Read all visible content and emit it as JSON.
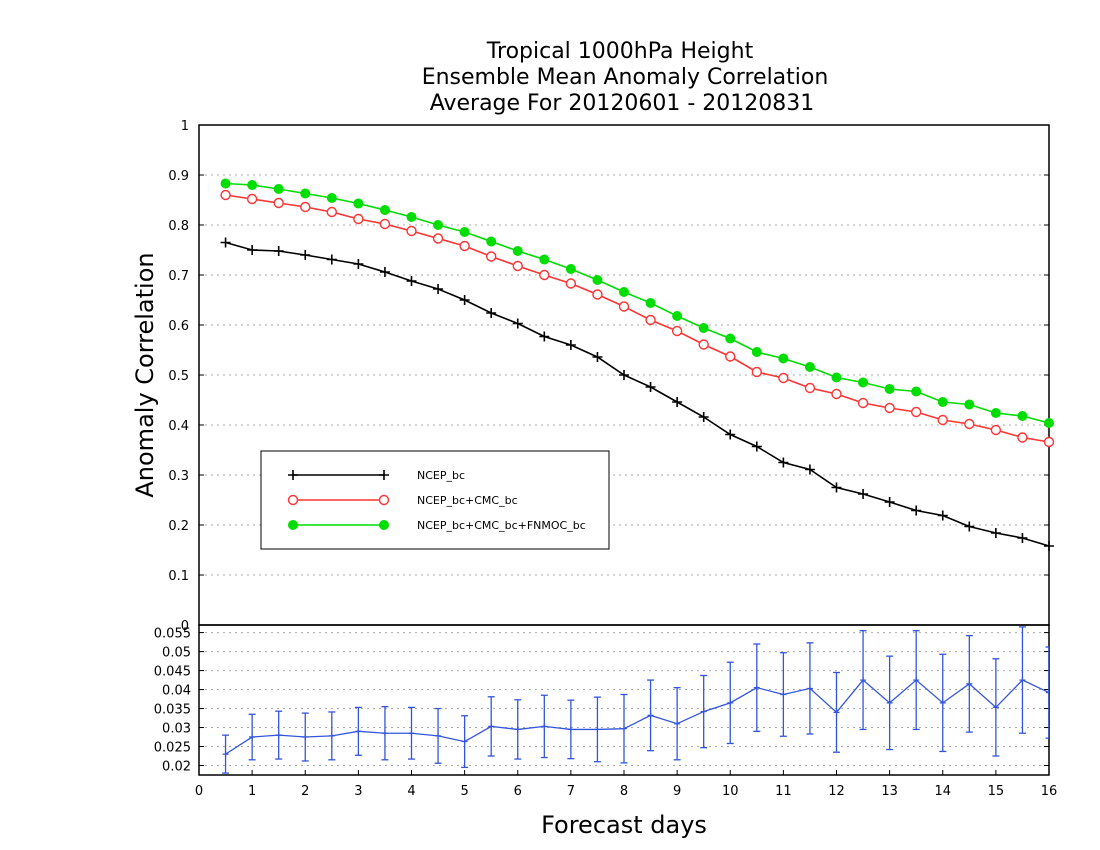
{
  "chart_data": [
    {
      "type": "line",
      "title_lines": [
        "Tropical 1000hPa Height",
        "Ensemble Mean Anomaly Correlation",
        "Average For 20120601 - 20120831"
      ],
      "ylabel": "Anomaly Correlation",
      "xlim": [
        0,
        16
      ],
      "ylim": [
        0,
        1
      ],
      "yticks": [
        "0",
        "0.1",
        "0.2",
        "0.3",
        "0.4",
        "0.5",
        "0.6",
        "0.7",
        "0.8",
        "0.9",
        "1"
      ],
      "grid": true,
      "legend_position": "lower-left",
      "x": [
        0.5,
        1.0,
        1.5,
        2.0,
        2.5,
        3.0,
        3.5,
        4.0,
        4.5,
        5.0,
        5.5,
        6.0,
        6.5,
        7.0,
        7.5,
        8.0,
        8.5,
        9.0,
        9.5,
        10.0,
        10.5,
        11.0,
        11.5,
        12.0,
        12.5,
        13.0,
        13.5,
        14.0,
        14.5,
        15.0,
        15.5,
        16.0
      ],
      "series": [
        {
          "name": "NCEP_bc",
          "color": "#000000",
          "marker": "plus",
          "values": [
            0.765,
            0.75,
            0.748,
            0.74,
            0.731,
            0.722,
            0.706,
            0.688,
            0.672,
            0.65,
            0.624,
            0.603,
            0.577,
            0.56,
            0.536,
            0.5,
            0.476,
            0.446,
            0.416,
            0.381,
            0.357,
            0.325,
            0.311,
            0.275,
            0.262,
            0.246,
            0.229,
            0.219,
            0.197,
            0.184,
            0.174,
            0.158
          ]
        },
        {
          "name": "NCEP_bc+CMC_bc",
          "color": "#ff3333",
          "marker": "open-circle",
          "values": [
            0.86,
            0.852,
            0.844,
            0.836,
            0.826,
            0.812,
            0.802,
            0.788,
            0.773,
            0.758,
            0.737,
            0.718,
            0.7,
            0.683,
            0.661,
            0.637,
            0.61,
            0.588,
            0.561,
            0.537,
            0.506,
            0.494,
            0.474,
            0.462,
            0.444,
            0.434,
            0.426,
            0.41,
            0.402,
            0.39,
            0.375,
            0.366
          ]
        },
        {
          "name": "NCEP_bc+CMC_bc+FNMOC_bc",
          "color": "#00dd00",
          "marker": "filled-circle",
          "values": [
            0.883,
            0.88,
            0.872,
            0.863,
            0.854,
            0.843,
            0.83,
            0.816,
            0.8,
            0.786,
            0.767,
            0.748,
            0.731,
            0.712,
            0.69,
            0.666,
            0.644,
            0.618,
            0.594,
            0.573,
            0.546,
            0.533,
            0.516,
            0.495,
            0.485,
            0.472,
            0.467,
            0.446,
            0.441,
            0.424,
            0.418,
            0.404
          ]
        }
      ]
    },
    {
      "type": "line",
      "xlabel": "Forecast days",
      "xlim": [
        0,
        16
      ],
      "xticks": [
        "0",
        "1",
        "2",
        "3",
        "4",
        "5",
        "6",
        "7",
        "8",
        "9",
        "10",
        "11",
        "12",
        "13",
        "14",
        "15",
        "16"
      ],
      "ylim": [
        0.0175,
        0.057
      ],
      "yticks": [
        "0.02",
        "0.025",
        "0.03",
        "0.035",
        "0.04",
        "0.045",
        "0.05",
        "0.055"
      ],
      "grid": true,
      "color": "#3355dd",
      "x": [
        0.5,
        1.0,
        1.5,
        2.0,
        2.5,
        3.0,
        3.5,
        4.0,
        4.5,
        5.0,
        5.5,
        6.0,
        6.5,
        7.0,
        7.5,
        8.0,
        8.5,
        9.0,
        9.5,
        10.0,
        10.5,
        11.0,
        11.5,
        12.0,
        12.5,
        13.0,
        13.5,
        14.0,
        14.5,
        15.0,
        15.5,
        16.0
      ],
      "values": [
        0.023,
        0.0275,
        0.028,
        0.0275,
        0.0278,
        0.029,
        0.0285,
        0.0285,
        0.0278,
        0.0263,
        0.0303,
        0.0295,
        0.0303,
        0.0295,
        0.0295,
        0.0297,
        0.0332,
        0.031,
        0.0342,
        0.0365,
        0.0405,
        0.0387,
        0.0403,
        0.034,
        0.0425,
        0.0365,
        0.0425,
        0.0365,
        0.0415,
        0.0353,
        0.0425,
        0.0392
      ],
      "error": [
        0.005,
        0.006,
        0.0063,
        0.0063,
        0.0063,
        0.0063,
        0.007,
        0.0068,
        0.0072,
        0.0068,
        0.0078,
        0.0078,
        0.0082,
        0.0077,
        0.0085,
        0.009,
        0.0093,
        0.0095,
        0.0095,
        0.0107,
        0.0115,
        0.011,
        0.012,
        0.0105,
        0.013,
        0.0123,
        0.013,
        0.0128,
        0.0127,
        0.0128,
        0.014,
        0.012
      ]
    }
  ]
}
